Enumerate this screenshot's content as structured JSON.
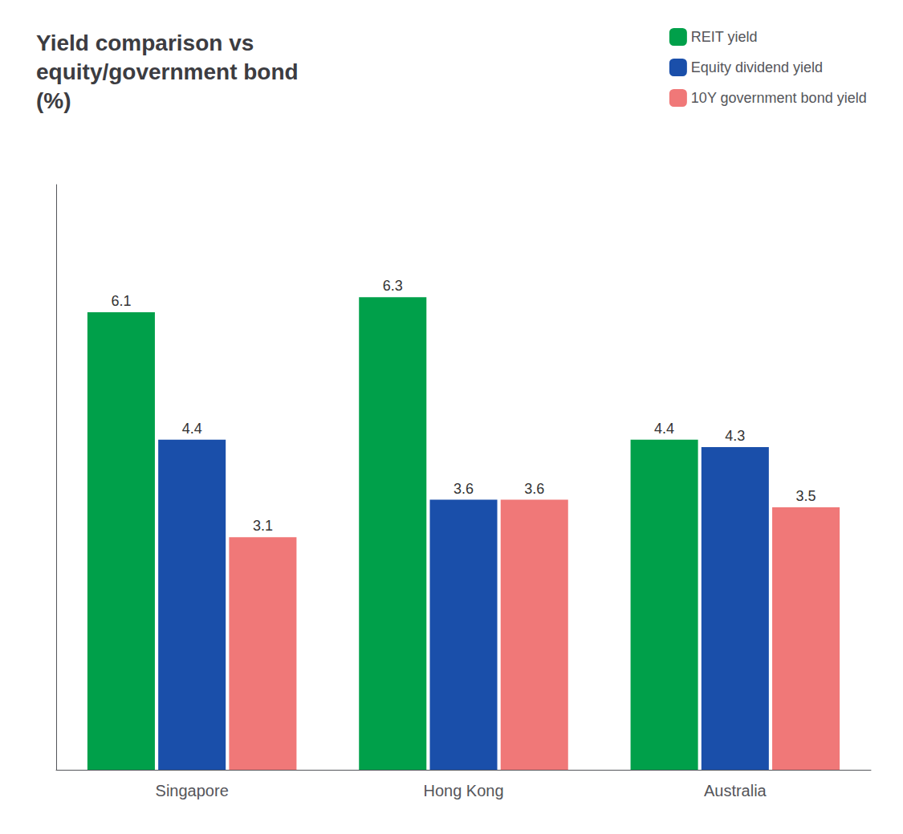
{
  "chart_data": {
    "type": "bar",
    "title": "Yield comparison vs\nequity/government bond\n(%)",
    "categories": [
      "Singapore",
      "Hong Kong",
      "Australia"
    ],
    "series": [
      {
        "name": "REIT yield",
        "color": "#00a04a",
        "values": [
          6.1,
          6.3,
          4.4
        ]
      },
      {
        "name": "Equity dividend yield",
        "color": "#1a4faa",
        "values": [
          4.4,
          3.6,
          4.3
        ]
      },
      {
        "name": "10Y government bond yield",
        "color": "#f07878",
        "values": [
          3.1,
          3.6,
          3.5
        ]
      }
    ],
    "ylim": [
      0,
      7.8
    ],
    "grid": false,
    "legend": "upper right",
    "data_labels": true,
    "tick_labels": "x"
  }
}
